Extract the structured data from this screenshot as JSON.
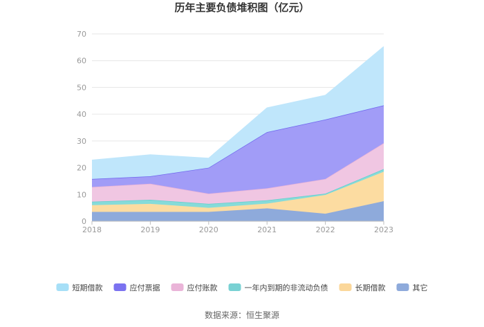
{
  "chart_data": {
    "type": "area",
    "stacked": true,
    "title": "历年主要负债堆积图（亿元）",
    "x": [
      "2018",
      "2019",
      "2020",
      "2021",
      "2022",
      "2023"
    ],
    "ylim": [
      0,
      70
    ],
    "yticks": [
      0,
      10,
      20,
      30,
      40,
      50,
      60,
      70
    ],
    "grid": true,
    "legend_position": "bottom",
    "series": [
      {
        "name": "其它",
        "color": "#8eaadb",
        "values": [
          3.5,
          3.5,
          3.5,
          4.8,
          2.8,
          7.5
        ]
      },
      {
        "name": "长期借款",
        "color": "#fcdca1",
        "values": [
          2.5,
          3.0,
          1.5,
          1.8,
          7.0,
          11.0
        ]
      },
      {
        "name": "一年内到期的非流动负债",
        "color": "#86dbd9",
        "values": [
          1.3,
          1.5,
          1.5,
          1.2,
          0.5,
          1.0
        ]
      },
      {
        "name": "应付账款",
        "color": "#f0c6e2",
        "values": [
          5.5,
          6.0,
          3.8,
          4.5,
          5.5,
          9.7
        ]
      },
      {
        "name": "应付票据",
        "color": "#a19cf7",
        "values": [
          3.0,
          2.8,
          9.7,
          21.0,
          22.2,
          14.1
        ]
      },
      {
        "name": "短期借款",
        "color": "#bfe6fb",
        "values": [
          7.0,
          8.0,
          3.5,
          9.0,
          9.0,
          21.9
        ]
      }
    ],
    "legend_order": [
      "短期借款",
      "应付票据",
      "应付账款",
      "一年内到期的非流动负债",
      "长期借款",
      "其它"
    ]
  },
  "legend_swatch_colors": {
    "短期借款": "#a6dff7",
    "应付票据": "#7b72f0",
    "应付账款": "#eab4d8",
    "一年内到期的非流动负债": "#79d1d3",
    "长期借款": "#fbd79a",
    "其它": "#8eaadb"
  },
  "line_colors": {
    "短期借款": "#bfe6fb",
    "应付票据": "#6f66ee",
    "应付账款": "#e9b4d8",
    "一年内到期的非流动负债": "#5fd0cc",
    "长期借款": "#fcdca1",
    "其它": "#8eaadb"
  },
  "source_text": "数据来源：恒生聚源"
}
